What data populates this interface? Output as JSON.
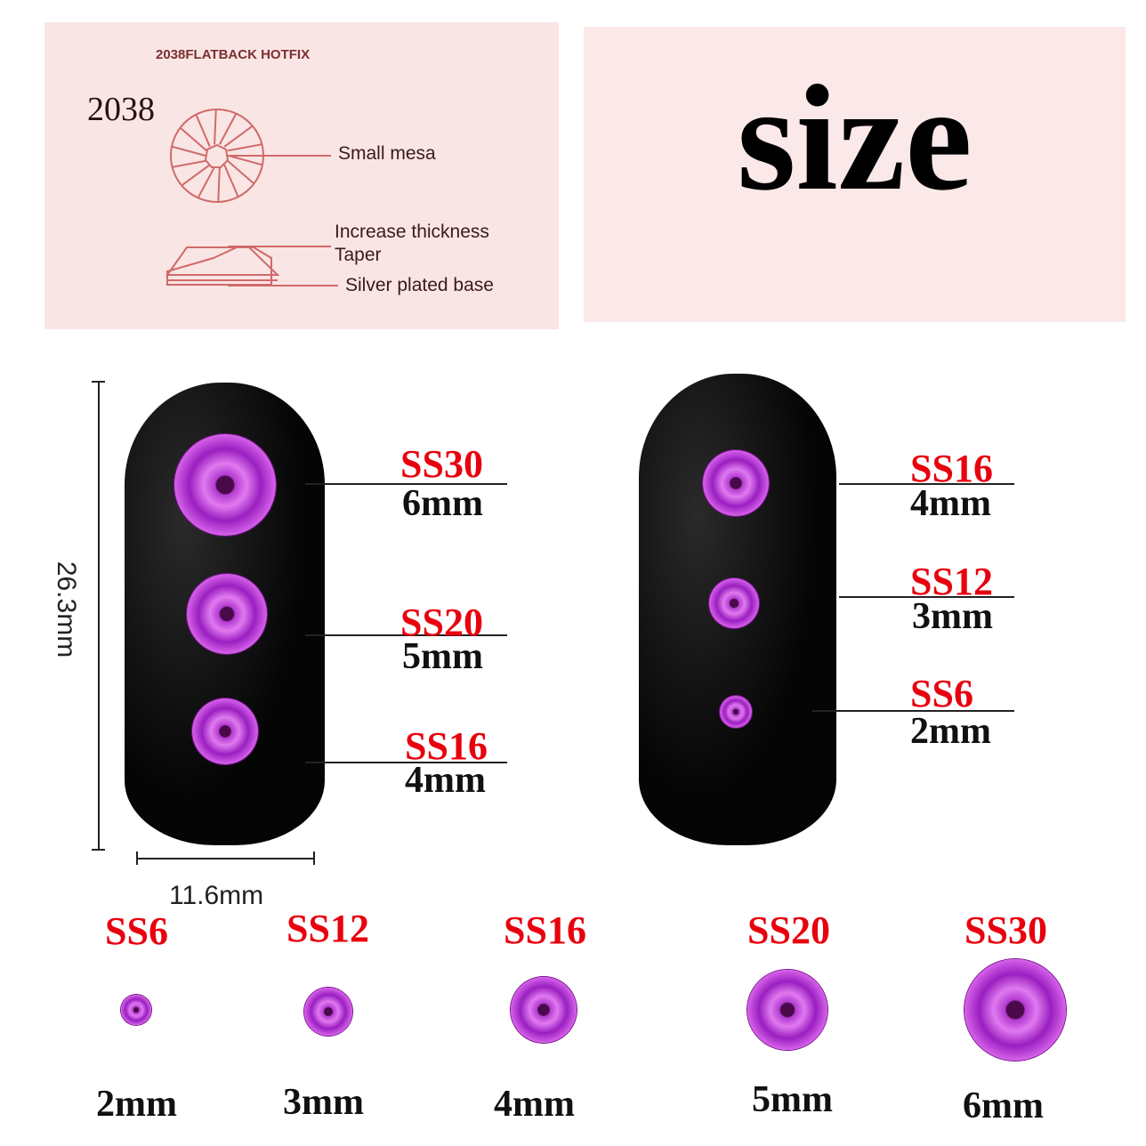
{
  "diagram": {
    "title": "2038FLATBACK HOTFIX",
    "model": "2038",
    "labels": [
      "Small mesa",
      "Increase thickness",
      "Taper",
      "Silver plated base"
    ]
  },
  "heading": "size",
  "dimensions": {
    "height": "26.3mm",
    "width": "11.6mm"
  },
  "left_nail": [
    {
      "ss": "SS30",
      "mm": "6mm"
    },
    {
      "ss": "SS20",
      "mm": "5mm"
    },
    {
      "ss": "SS16",
      "mm": "4mm"
    }
  ],
  "right_nail": [
    {
      "ss": "SS16",
      "mm": "4mm"
    },
    {
      "ss": "SS12",
      "mm": "3mm"
    },
    {
      "ss": "SS6",
      "mm": "2mm"
    }
  ],
  "sizes": [
    {
      "ss": "SS6",
      "mm": "2mm"
    },
    {
      "ss": "SS12",
      "mm": "3mm"
    },
    {
      "ss": "SS16",
      "mm": "4mm"
    },
    {
      "ss": "SS20",
      "mm": "5mm"
    },
    {
      "ss": "SS30",
      "mm": "6mm"
    }
  ],
  "colors": {
    "label_red": "#e8000e",
    "gem": "#b23ad0",
    "panel": "#f9e5e4"
  }
}
